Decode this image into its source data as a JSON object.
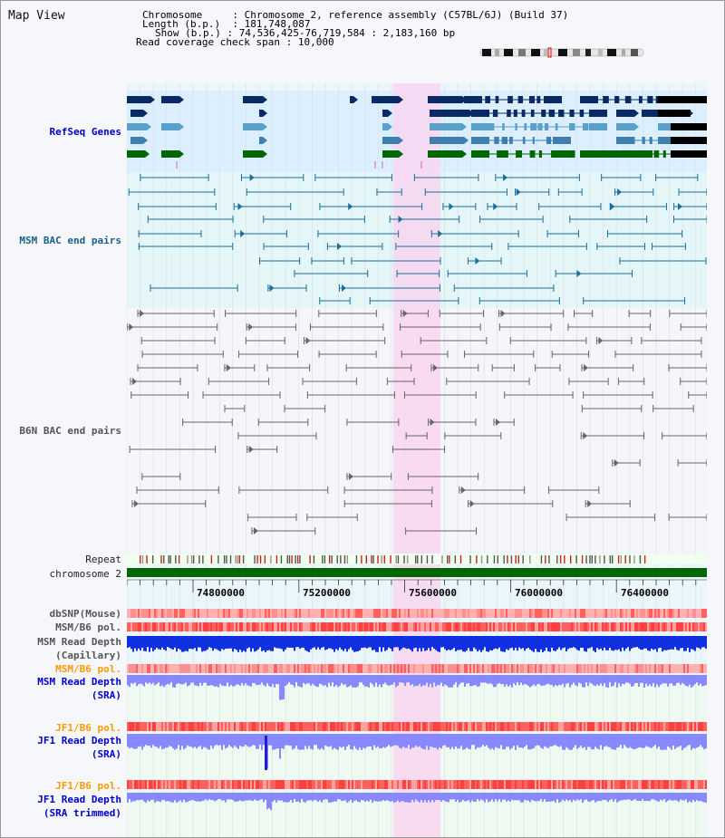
{
  "header": {
    "title": "Map View",
    "chromosome_key": "Chromosome",
    "chromosome_val": "Chromosome 2, reference assembly (C57BL/6J) (Build 37)",
    "length_key": "Length (b.p.)",
    "length_val": "181,748,087",
    "show_key": "Show (b.p.)",
    "show_val": "74,536,425-76,719,584 : 2,183,160 bp",
    "coverage_key": "Read coverage check span",
    "coverage_val": "10,000"
  },
  "tracks": {
    "refseq": "RefSeq Genes",
    "msm_bac": "MSM BAC end pairs",
    "b6n_bac": "B6N BAC end pairs",
    "repeat": "Repeat",
    "chromosome": "chromosome 2",
    "dbsnp": "dbSNP(Mouse)",
    "msm_b6_pol": "MSM/B6 pol.",
    "msm_read_depth_cap": "MSM Read Depth\n(Capillary)",
    "msm_b6_pol2": "MSM/B6 pol.",
    "msm_read_depth_sra": "MSM Read Depth\n(SRA)",
    "jf1_b6_pol": "JF1/B6 pol.",
    "jf1_read_depth_sra": "JF1 Read Depth\n(SRA)",
    "jf1_b6_pol2": "JF1/B6 pol.",
    "jf1_read_depth_trim": "JF1 Read Depth\n(SRA trimmed)"
  },
  "axis": {
    "ticks": [
      "74800000",
      "75200000",
      "75600000",
      "76000000",
      "76400000"
    ]
  },
  "colors": {
    "highlight": "#f8d6f0",
    "gene_dark": "#0a2a66",
    "gene_mid": "#3f7fb0",
    "gene_light": "#5aa0c8",
    "gene_green": "#006600",
    "bac_msm": "#1a6f9a",
    "bac_b6n": "#666666",
    "chrom_bar": "#006600",
    "depth_dark": "#1030e0",
    "depth_light": "#8888ff",
    "pol_red": "#ff5a5a"
  }
}
